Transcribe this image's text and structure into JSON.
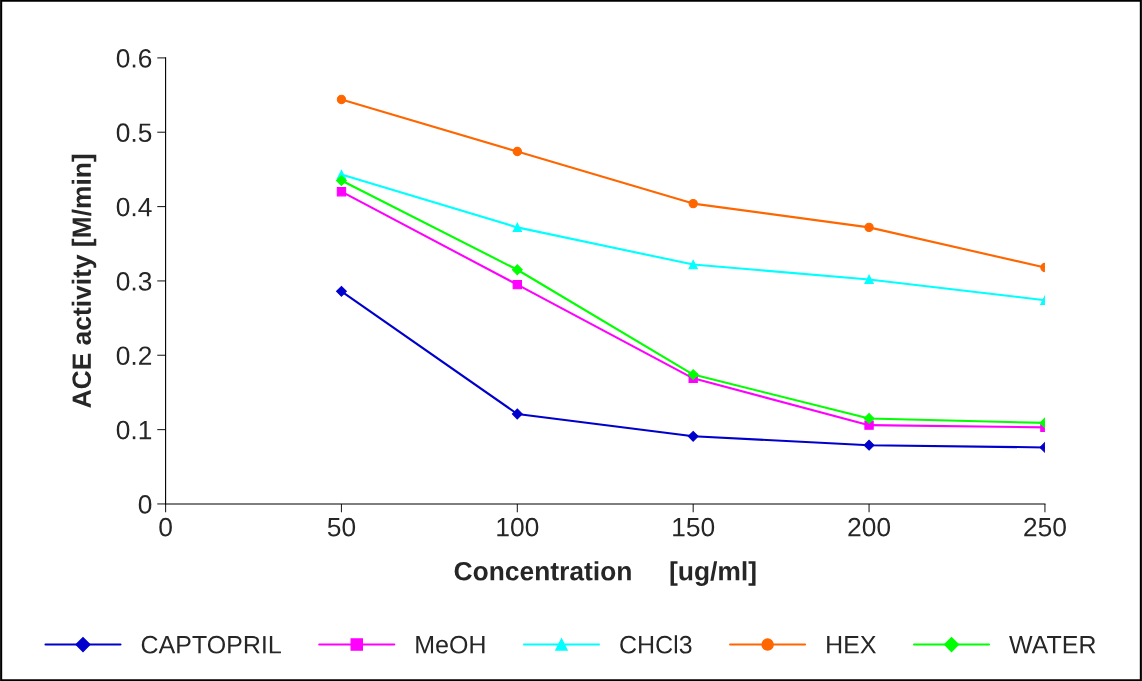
{
  "chart_data": {
    "type": "line",
    "xlabel": "Concentration     [ug/ml]",
    "ylabel": "ACE activity [M/min]",
    "x": [
      50,
      100,
      150,
      200,
      250
    ],
    "xlim": [
      0,
      250
    ],
    "xticks": [
      0,
      50,
      100,
      150,
      200,
      250
    ],
    "ylim": [
      0,
      0.6
    ],
    "yticks": [
      0,
      0.1,
      0.2,
      0.3,
      0.4,
      0.5,
      0.6
    ],
    "grid": false,
    "legend": "bottom",
    "series": [
      {
        "name": "CAPTOPRIL",
        "color": "#0000cc",
        "marker": "diamond",
        "values": [
          0.286,
          0.121,
          0.091,
          0.079,
          0.076
        ]
      },
      {
        "name": "MeOH",
        "color": "#ff00ff",
        "marker": "square",
        "values": [
          0.42,
          0.295,
          0.169,
          0.106,
          0.103
        ]
      },
      {
        "name": "CHCl3",
        "color": "#00ffff",
        "marker": "triangle",
        "values": [
          0.443,
          0.372,
          0.322,
          0.302,
          0.274
        ]
      },
      {
        "name": "HEX",
        "color": "#ff6600",
        "marker": "circle",
        "values": [
          0.544,
          0.474,
          0.404,
          0.372,
          0.318
        ]
      },
      {
        "name": "WATER",
        "color": "#00ff00",
        "marker": "diamond",
        "values": [
          0.435,
          0.315,
          0.174,
          0.115,
          0.109
        ]
      }
    ]
  }
}
